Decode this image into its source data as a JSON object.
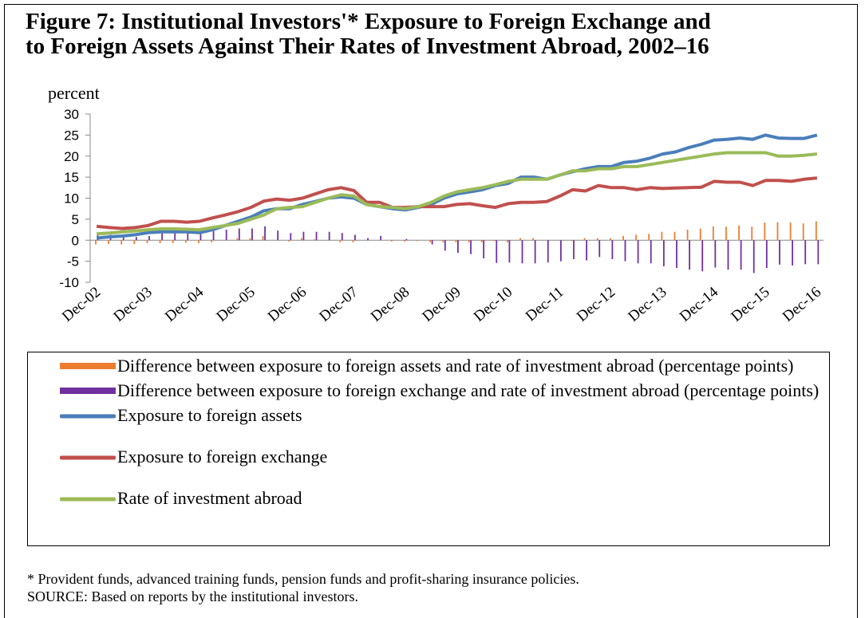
{
  "chart_data": {
    "type": "combo",
    "title_lines": [
      "Figure 7: Institutional Investors'* Exposure to Foreign Exchange and",
      "to Foreign Assets Against Their Rates of Investment Abroad, 2002–16"
    ],
    "y_label": "percent",
    "footnote": "* Provident funds, advanced training funds, pension funds and profit-sharing insurance policies.",
    "source": "SOURCE: Based on reports by the institutional investors.",
    "categories": [
      "Dec-02",
      null,
      null,
      null,
      "Dec-03",
      null,
      null,
      null,
      "Dec-04",
      null,
      null,
      null,
      "Dec-05",
      null,
      null,
      null,
      "Dec-06",
      null,
      null,
      null,
      "Dec-07",
      null,
      null,
      null,
      "Dec-08",
      null,
      null,
      null,
      "Dec-09",
      null,
      null,
      null,
      "Dec-10",
      null,
      null,
      null,
      "Dec-11",
      null,
      null,
      null,
      "Dec-12",
      null,
      null,
      null,
      "Dec-13",
      null,
      null,
      null,
      "Dec-14",
      null,
      null,
      null,
      "Dec-15",
      null,
      null,
      null,
      "Dec-16"
    ],
    "ylim": [
      -10,
      30
    ],
    "yticks": [
      -10,
      -5,
      0,
      5,
      10,
      15,
      20,
      25,
      30
    ],
    "series": [
      {
        "name": "Difference between exposure to foreign assets and rate of investment abroad (percentage points)",
        "type": "bar",
        "color": "#ed7d31",
        "values": [
          -1,
          -0.9,
          -1,
          -0.9,
          -0.7,
          -0.7,
          -0.7,
          -0.6,
          -0.7,
          -0.5,
          0,
          0.5,
          0.5,
          1,
          0,
          -0.3,
          0.5,
          0.2,
          0,
          -0.5,
          -0.5,
          0,
          0,
          -0.3,
          -0.3,
          -0.2,
          -0.5,
          -0.5,
          -0.5,
          -0.5,
          -0.5,
          -0.2,
          -0.5,
          0.5,
          0.5,
          0,
          0,
          -0.2,
          0.5,
          0.5,
          0.5,
          1,
          1.3,
          1.5,
          2,
          2,
          2.5,
          2.8,
          3.3,
          3.2,
          3.5,
          3.2,
          4.2,
          4.3,
          4.2,
          4,
          4.5
        ]
      },
      {
        "name": "Difference between exposure to foreign exchange and rate of investment abroad (percentage points)",
        "type": "bar",
        "color": "#7030a0",
        "values": [
          1.8,
          1.3,
          0.8,
          0.8,
          1,
          1.8,
          1.8,
          1.7,
          2,
          2.3,
          2.5,
          2.8,
          2.8,
          3.3,
          2.3,
          1.7,
          2,
          2,
          2,
          1.7,
          1.3,
          0.5,
          1,
          0,
          0.3,
          0,
          -1,
          -2.5,
          -3,
          -3.3,
          -4.3,
          -5.4,
          -5.3,
          -5.5,
          -5.5,
          -5.3,
          -5,
          -4.5,
          -4.8,
          -4,
          -4.5,
          -5,
          -5.5,
          -5.5,
          -6.2,
          -6.6,
          -7,
          -7.4,
          -6.5,
          -7,
          -7,
          -7.8,
          -6.6,
          -5.8,
          -6,
          -5.7,
          -5.7
        ]
      },
      {
        "name": "Exposure to foreign assets",
        "type": "line",
        "color": "#4a7ebb",
        "values": [
          0.5,
          0.8,
          1,
          1.3,
          1.8,
          2,
          2,
          2,
          1.8,
          2.5,
          3.5,
          4.5,
          5.5,
          7,
          7.5,
          7.5,
          8.5,
          9.2,
          10,
          10.3,
          10,
          8.5,
          8,
          7.5,
          7.2,
          7.8,
          8.5,
          10,
          11,
          11.5,
          12,
          13,
          13.5,
          15,
          15,
          14.5,
          15.5,
          16.3,
          17,
          17.5,
          17.5,
          18.5,
          18.8,
          19.5,
          20.5,
          21,
          22,
          22.8,
          23.8,
          24,
          24.3,
          24,
          25,
          24.3,
          24.2,
          24.2,
          25
        ]
      },
      {
        "name": "Exposure to foreign exchange",
        "type": "line",
        "color": "#c0504d",
        "values": [
          3.3,
          3,
          2.8,
          3,
          3.5,
          4.5,
          4.5,
          4.3,
          4.5,
          5.3,
          6,
          6.8,
          7.8,
          9.3,
          9.8,
          9.5,
          10,
          11,
          12,
          12.5,
          11.8,
          9,
          9,
          7.8,
          7.8,
          8,
          8,
          8,
          8.5,
          8.7,
          8.2,
          7.8,
          8.7,
          9,
          9,
          9.2,
          10.5,
          12,
          11.7,
          13,
          12.5,
          12.5,
          12,
          12.5,
          12.3,
          12.4,
          12.5,
          12.6,
          14,
          13.8,
          13.8,
          13,
          14.2,
          14.2,
          14,
          14.5,
          14.8
        ]
      },
      {
        "name": "Rate of investment abroad",
        "type": "line",
        "color": "#9bbb59",
        "values": [
          1.5,
          1.7,
          2,
          2.2,
          2.5,
          2.7,
          2.7,
          2.6,
          2.5,
          3,
          3.5,
          4,
          5,
          6,
          7.5,
          7.8,
          8,
          9,
          10,
          10.8,
          10.5,
          8.5,
          8,
          7.8,
          7.5,
          8,
          9,
          10.5,
          11.5,
          12,
          12.5,
          13.2,
          14,
          14.5,
          14.5,
          14.5,
          15.5,
          16.5,
          16.5,
          17,
          17,
          17.5,
          17.5,
          18,
          18.5,
          19,
          19.5,
          20,
          20.5,
          20.8,
          20.8,
          20.8,
          20.8,
          20,
          20,
          20.2,
          20.5
        ]
      }
    ]
  }
}
